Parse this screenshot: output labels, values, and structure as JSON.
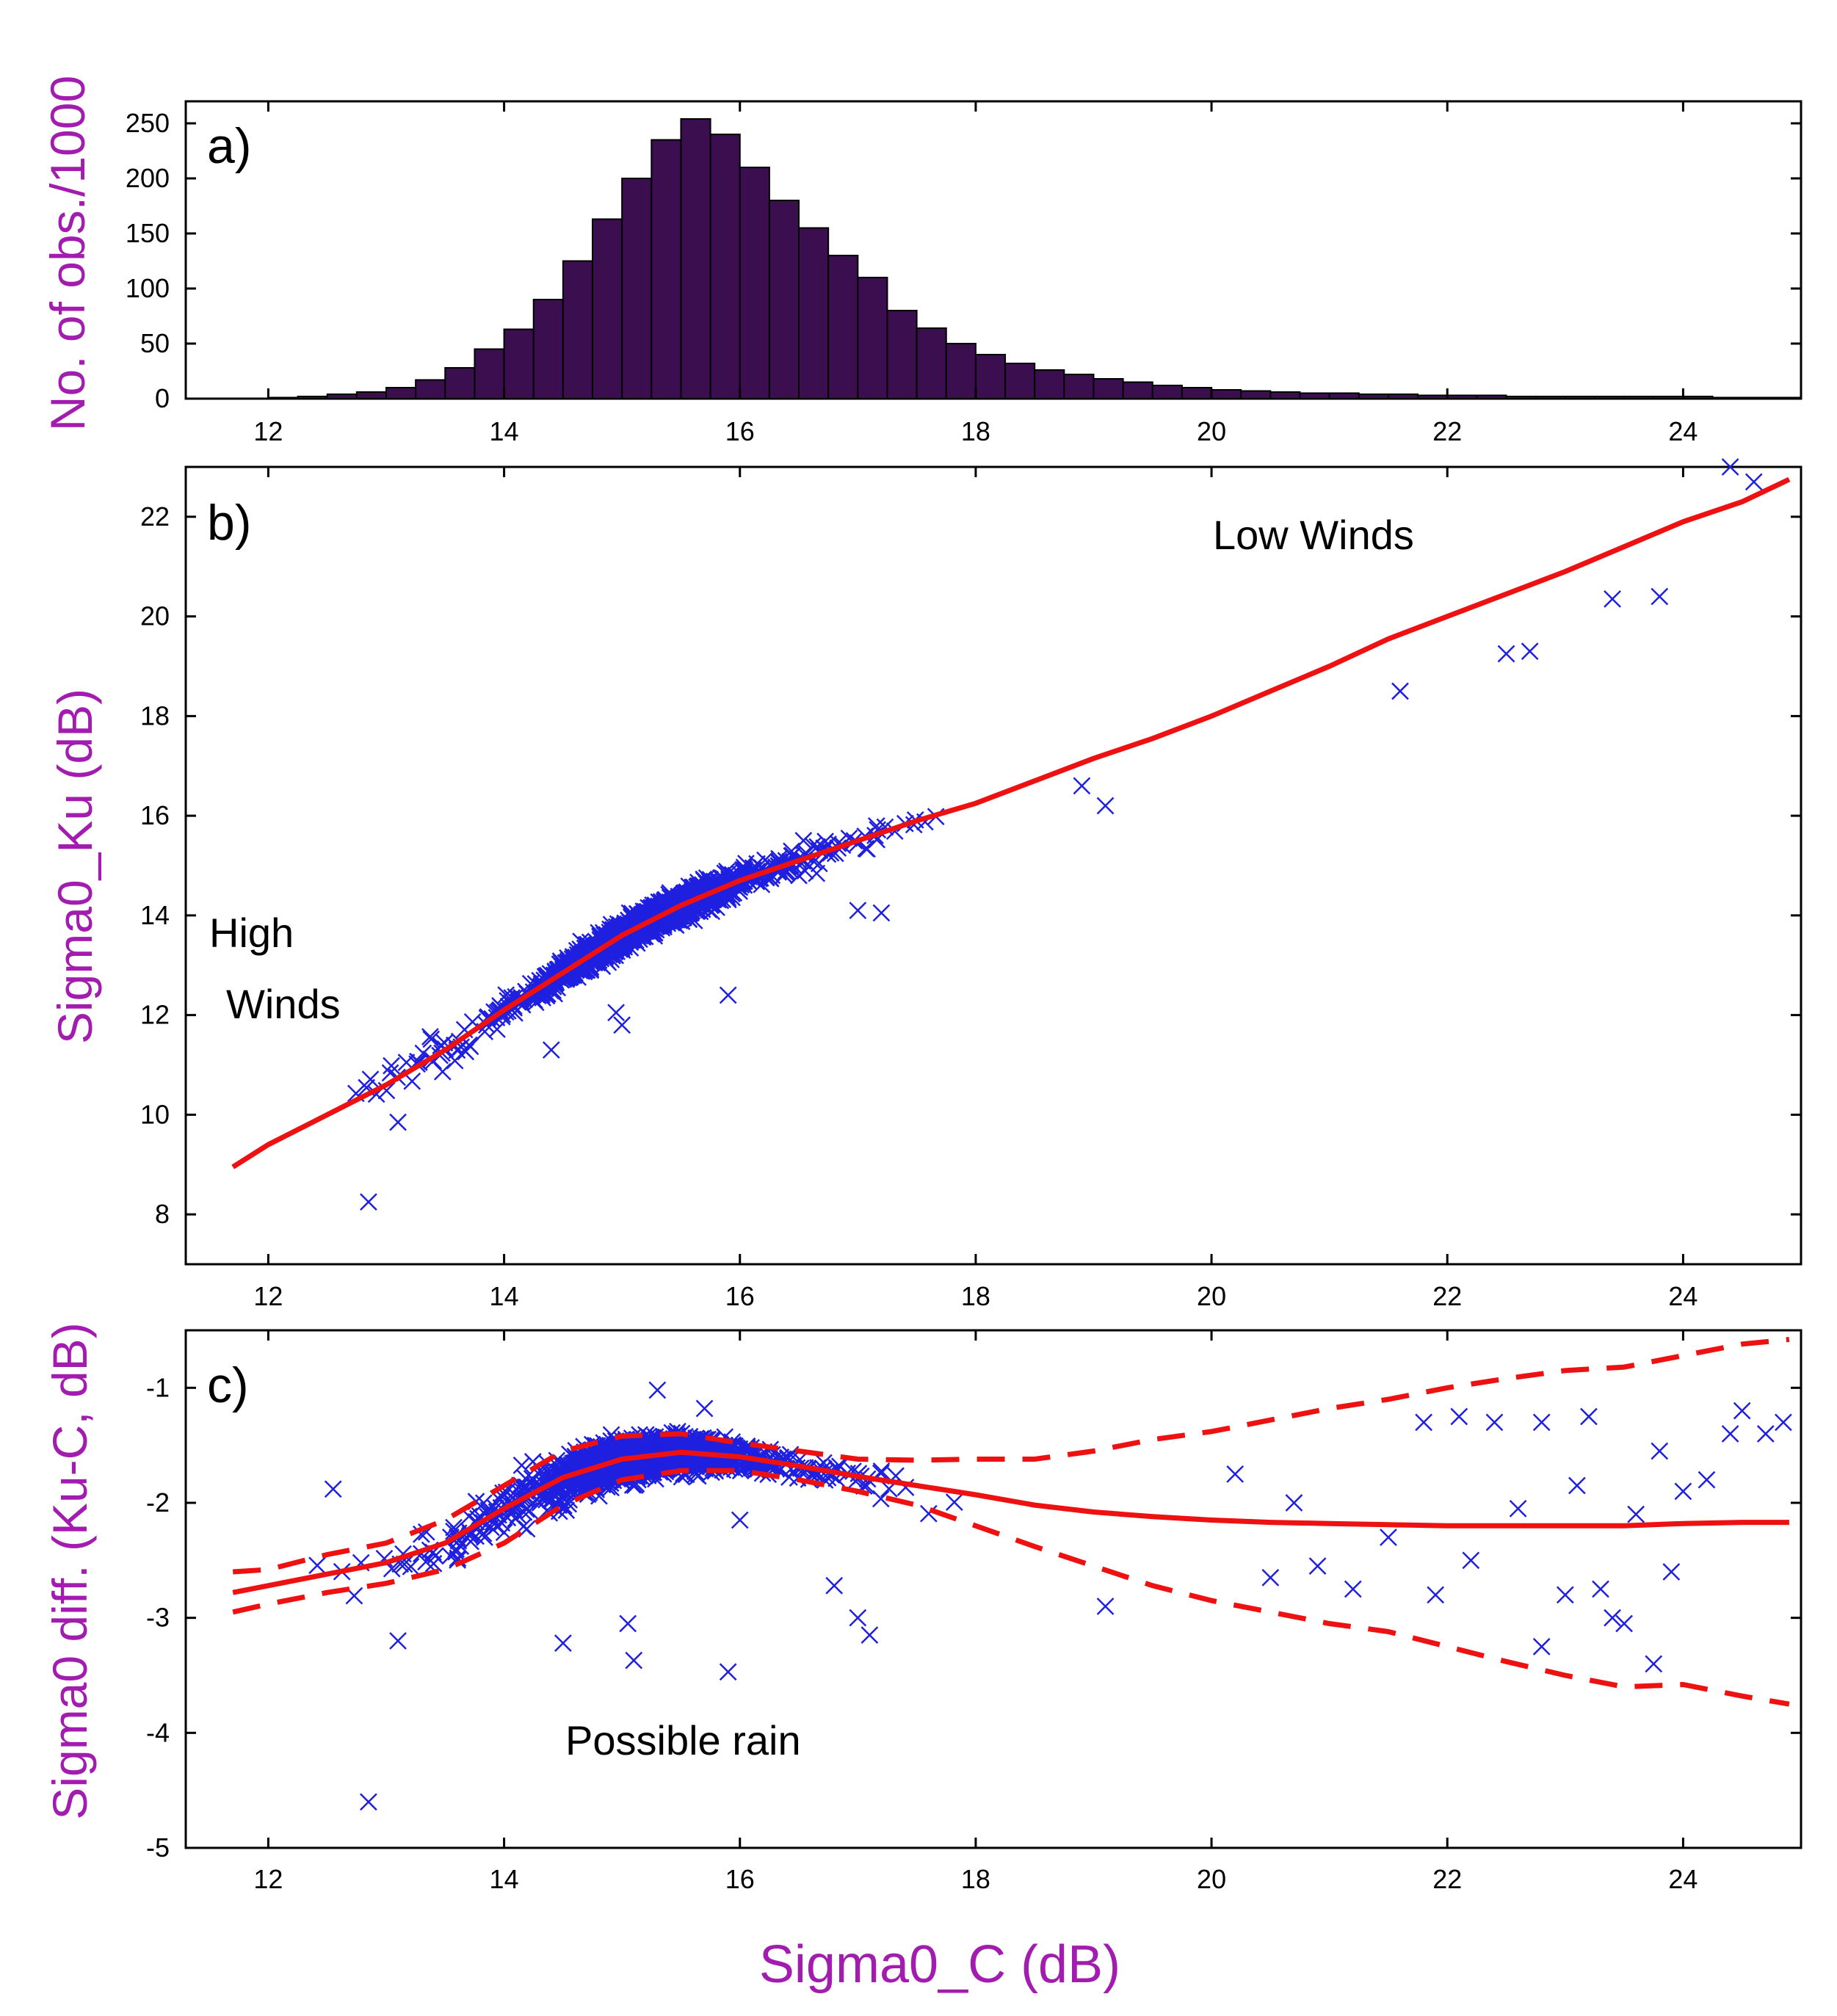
{
  "label_color": "#a21caf",
  "chart_data": [
    {
      "panel": "a)",
      "type": "bar",
      "ylabel": "No. of obs./1000",
      "xlim": [
        11.3,
        25.0
      ],
      "ylim": [
        0,
        270
      ],
      "x_ticks": [
        "12",
        "14",
        "16",
        "18",
        "20",
        "22",
        "24"
      ],
      "y_ticks": [
        "0",
        "50",
        "100",
        "150",
        "200",
        "250"
      ],
      "bar_color": "#3b0f4f",
      "bin_width": 0.25,
      "bin_starts": [
        12.0,
        12.25,
        12.5,
        12.75,
        13.0,
        13.25,
        13.5,
        13.75,
        14.0,
        14.25,
        14.5,
        14.75,
        15.0,
        15.25,
        15.5,
        15.75,
        16.0,
        16.25,
        16.5,
        16.75,
        17.0,
        17.25,
        17.5,
        17.75,
        18.0,
        18.25,
        18.5,
        18.75,
        19.0,
        19.25,
        19.5,
        19.75,
        20.0,
        20.25,
        20.5,
        20.75,
        21.0,
        21.25,
        21.5,
        21.75,
        22.0,
        22.25,
        22.5,
        22.75,
        23.0,
        23.25,
        23.5,
        23.75,
        24.0,
        24.25,
        24.5,
        24.75
      ],
      "values": [
        1,
        2,
        4,
        6,
        10,
        17,
        28,
        45,
        63,
        90,
        125,
        163,
        200,
        235,
        254,
        240,
        210,
        180,
        155,
        130,
        110,
        80,
        64,
        50,
        40,
        32,
        26,
        22,
        18,
        15,
        12,
        10,
        8,
        7,
        6,
        5,
        5,
        4,
        4,
        3,
        3,
        3,
        2,
        2,
        2,
        2,
        2,
        2,
        2,
        1,
        1,
        1
      ]
    },
    {
      "panel": "b)",
      "type": "scatter",
      "ylabel": "Sigma0_Ku (dB)",
      "xlim": [
        11.3,
        25.0
      ],
      "ylim": [
        7,
        23
      ],
      "x_ticks": [
        "12",
        "14",
        "16",
        "18",
        "20",
        "22",
        "24"
      ],
      "y_ticks": [
        "8",
        "10",
        "12",
        "14",
        "16",
        "18",
        "20",
        "22"
      ],
      "marker_color": "#1f1fe0",
      "fit_color": "#ee1111",
      "annotations": [
        "Low Winds",
        "High",
        "Winds"
      ],
      "fit_line": {
        "x": [
          11.7,
          12.0,
          12.5,
          13.0,
          13.5,
          14.0,
          14.5,
          15.0,
          15.5,
          16.0,
          16.5,
          17.0,
          17.5,
          18.0,
          18.5,
          19.0,
          19.5,
          20.0,
          20.5,
          21.0,
          21.5,
          22.0,
          22.5,
          23.0,
          23.5,
          24.0,
          24.5,
          24.9
        ],
        "y": [
          8.95,
          9.4,
          10.0,
          10.6,
          11.3,
          12.1,
          12.85,
          13.6,
          14.2,
          14.7,
          15.1,
          15.5,
          15.9,
          16.25,
          16.7,
          17.15,
          17.55,
          18.0,
          18.5,
          19.0,
          19.55,
          20.0,
          20.45,
          20.9,
          21.4,
          21.9,
          22.3,
          22.75
        ]
      },
      "outlier_points": [
        [
          12.85,
          8.25
        ],
        [
          13.1,
          9.85
        ],
        [
          15.9,
          12.4
        ],
        [
          14.4,
          11.3
        ],
        [
          15.0,
          11.8
        ],
        [
          14.95,
          12.05
        ],
        [
          17.0,
          14.1
        ],
        [
          17.2,
          14.05
        ],
        [
          19.1,
          16.2
        ],
        [
          23.8,
          20.4
        ],
        [
          23.4,
          20.35
        ],
        [
          22.5,
          19.25
        ],
        [
          22.7,
          19.3
        ],
        [
          24.4,
          23.0
        ],
        [
          24.6,
          22.7
        ],
        [
          16.5,
          14.8
        ],
        [
          18.9,
          16.6
        ],
        [
          21.6,
          18.5
        ]
      ]
    },
    {
      "panel": "c)",
      "type": "scatter",
      "ylabel": "Sigma0 diff. (Ku-C, dB)",
      "xlabel": "Sigma0_C (dB)",
      "xlim": [
        11.3,
        25.0
      ],
      "ylim": [
        -5,
        -0.5
      ],
      "x_ticks": [
        "12",
        "14",
        "16",
        "18",
        "20",
        "22",
        "24"
      ],
      "y_ticks": [
        "-1",
        "-2",
        "-3",
        "-4",
        "-5"
      ],
      "marker_color": "#1f1fe0",
      "fit_color": "#ee1111",
      "annotations": [
        "Possible rain"
      ],
      "mean_line": {
        "x": [
          11.7,
          12.0,
          12.5,
          13.0,
          13.5,
          14.0,
          14.5,
          15.0,
          15.5,
          16.0,
          16.5,
          17.0,
          17.5,
          18.0,
          18.5,
          19.0,
          19.5,
          20.0,
          20.5,
          21.0,
          21.5,
          22.0,
          22.5,
          23.0,
          23.5,
          24.0,
          24.5,
          24.9
        ],
        "y": [
          -2.78,
          -2.72,
          -2.62,
          -2.52,
          -2.35,
          -2.05,
          -1.78,
          -1.62,
          -1.56,
          -1.6,
          -1.68,
          -1.77,
          -1.85,
          -1.93,
          -2.02,
          -2.08,
          -2.12,
          -2.15,
          -2.17,
          -2.18,
          -2.19,
          -2.2,
          -2.2,
          -2.2,
          -2.2,
          -2.18,
          -2.17,
          -2.17
        ]
      },
      "upper_bound": {
        "x": [
          11.7,
          12.0,
          12.5,
          13.0,
          13.5,
          14.0,
          14.5,
          15.0,
          15.5,
          16.0,
          16.5,
          17.0,
          17.5,
          18.0,
          18.5,
          19.0,
          19.5,
          20.0,
          20.5,
          21.0,
          21.5,
          22.0,
          22.5,
          23.0,
          23.5,
          24.0,
          24.5,
          24.9
        ],
        "y": [
          -2.6,
          -2.58,
          -2.45,
          -2.35,
          -2.15,
          -1.85,
          -1.55,
          -1.42,
          -1.4,
          -1.48,
          -1.55,
          -1.62,
          -1.63,
          -1.62,
          -1.62,
          -1.55,
          -1.45,
          -1.38,
          -1.28,
          -1.18,
          -1.1,
          -1.0,
          -0.92,
          -0.85,
          -0.82,
          -0.72,
          -0.62,
          -0.58
        ]
      },
      "lower_bound": {
        "x": [
          11.7,
          12.0,
          12.5,
          13.0,
          13.5,
          14.0,
          14.5,
          15.0,
          15.5,
          16.0,
          16.5,
          17.0,
          17.5,
          18.0,
          18.5,
          19.0,
          19.5,
          20.0,
          20.5,
          21.0,
          21.5,
          22.0,
          22.5,
          23.0,
          23.5,
          24.0,
          24.5,
          24.9
        ],
        "y": [
          -2.95,
          -2.88,
          -2.78,
          -2.7,
          -2.58,
          -2.35,
          -2.02,
          -1.8,
          -1.72,
          -1.72,
          -1.8,
          -1.9,
          -2.02,
          -2.2,
          -2.38,
          -2.55,
          -2.72,
          -2.85,
          -2.95,
          -3.05,
          -3.12,
          -3.25,
          -3.38,
          -3.5,
          -3.6,
          -3.58,
          -3.68,
          -3.75
        ]
      },
      "outlier_points": [
        [
          12.85,
          -4.6
        ],
        [
          12.55,
          -1.88
        ],
        [
          13.1,
          -3.2
        ],
        [
          14.5,
          -3.22
        ],
        [
          15.05,
          -3.05
        ],
        [
          15.1,
          -3.37
        ],
        [
          15.9,
          -3.47
        ],
        [
          15.3,
          -1.02
        ],
        [
          15.7,
          -1.18
        ],
        [
          16.0,
          -2.15
        ],
        [
          16.8,
          -2.72
        ],
        [
          17.0,
          -3.0
        ],
        [
          17.1,
          -3.15
        ],
        [
          19.1,
          -2.9
        ],
        [
          21.2,
          -2.75
        ],
        [
          22.2,
          -2.5
        ],
        [
          22.8,
          -3.25
        ],
        [
          23.0,
          -2.8
        ],
        [
          23.3,
          -2.75
        ],
        [
          23.4,
          -3.0
        ],
        [
          23.5,
          -3.05
        ],
        [
          23.75,
          -3.4
        ],
        [
          23.8,
          -1.55
        ],
        [
          23.9,
          -2.6
        ],
        [
          24.0,
          -1.9
        ],
        [
          24.2,
          -1.8
        ],
        [
          24.4,
          -1.4
        ],
        [
          24.5,
          -1.2
        ],
        [
          24.7,
          -1.4
        ],
        [
          24.85,
          -1.3
        ],
        [
          21.8,
          -1.3
        ],
        [
          22.1,
          -1.25
        ],
        [
          22.4,
          -1.3
        ],
        [
          22.8,
          -1.3
        ],
        [
          23.2,
          -1.25
        ],
        [
          23.6,
          -2.1
        ],
        [
          21.5,
          -2.3
        ],
        [
          20.7,
          -2.0
        ],
        [
          20.9,
          -2.55
        ],
        [
          21.9,
          -2.8
        ],
        [
          22.6,
          -2.05
        ],
        [
          23.1,
          -1.85
        ],
        [
          20.2,
          -1.75
        ],
        [
          20.5,
          -2.65
        ]
      ]
    }
  ]
}
